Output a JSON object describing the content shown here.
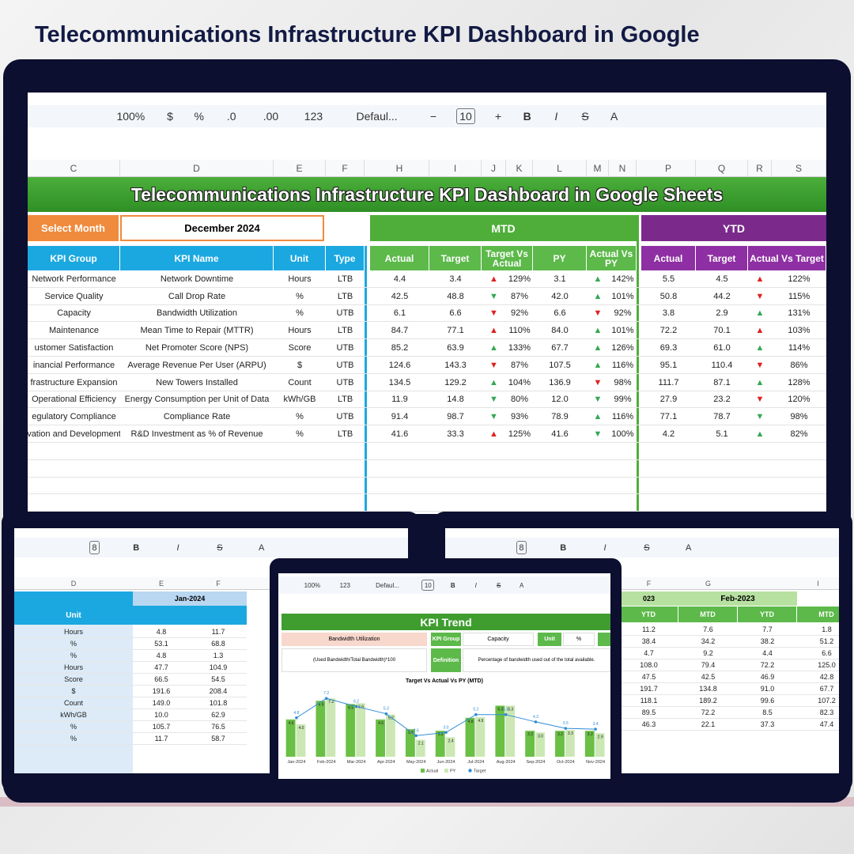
{
  "header": {
    "title": "Telecommunications Infrastructure KPI Dashboard in Google"
  },
  "main": {
    "toolbar": [
      "100%",
      "$",
      "%",
      ".0",
      ".00",
      "123",
      "Defaul...",
      "−",
      "10",
      "+",
      "B",
      "I",
      "S",
      "A"
    ],
    "columns": [
      "C",
      "D",
      "E",
      "F",
      "H",
      "I",
      "J",
      "K",
      "L",
      "M",
      "N",
      "P",
      "Q",
      "R",
      "S"
    ],
    "banner": "Telecommunications Infrastructure KPI Dashboard in Google Sheets",
    "select_label": "Select Month",
    "select_value": "December 2024",
    "mtd_label": "MTD",
    "ytd_label": "YTD",
    "headers": [
      "KPI Group",
      "KPI Name",
      "Unit",
      "Type",
      "Actual",
      "Target",
      "Target Vs Actual",
      "PY",
      "Actual Vs PY",
      "Actual",
      "Target",
      "Actual Vs Target"
    ],
    "rows": [
      {
        "group": "Network Performance",
        "name": "Network Downtime",
        "unit": "Hours",
        "type": "LTB",
        "mtd_actual": "4.4",
        "mtd_target": "3.4",
        "tva": {
          "icon": "▲",
          "color": "#e02020",
          "text": "129%"
        },
        "py": "3.1",
        "avp": {
          "icon": "▲",
          "color": "#34a853",
          "text": "142%"
        },
        "ytd_actual": "5.5",
        "ytd_target": "4.5",
        "avt": {
          "icon": "▲",
          "color": "#e02020",
          "text": "122%"
        }
      },
      {
        "group": "Service Quality",
        "name": "Call Drop Rate",
        "unit": "%",
        "type": "LTB",
        "mtd_actual": "42.5",
        "mtd_target": "48.8",
        "tva": {
          "icon": "▼",
          "color": "#34a853",
          "text": "87%"
        },
        "py": "42.0",
        "avp": {
          "icon": "▲",
          "color": "#34a853",
          "text": "101%"
        },
        "ytd_actual": "50.8",
        "ytd_target": "44.2",
        "avt": {
          "icon": "▼",
          "color": "#e02020",
          "text": "115%"
        }
      },
      {
        "group": "Capacity",
        "name": "Bandwidth Utilization",
        "unit": "%",
        "type": "UTB",
        "mtd_actual": "6.1",
        "mtd_target": "6.6",
        "tva": {
          "icon": "▼",
          "color": "#e02020",
          "text": "92%"
        },
        "py": "6.6",
        "avp": {
          "icon": "▼",
          "color": "#e02020",
          "text": "92%"
        },
        "ytd_actual": "3.8",
        "ytd_target": "2.9",
        "avt": {
          "icon": "▲",
          "color": "#34a853",
          "text": "131%"
        }
      },
      {
        "group": "Maintenance",
        "name": "Mean Time to Repair (MTTR)",
        "unit": "Hours",
        "type": "LTB",
        "mtd_actual": "84.7",
        "mtd_target": "77.1",
        "tva": {
          "icon": "▲",
          "color": "#e02020",
          "text": "110%"
        },
        "py": "84.0",
        "avp": {
          "icon": "▲",
          "color": "#34a853",
          "text": "101%"
        },
        "ytd_actual": "72.2",
        "ytd_target": "70.1",
        "avt": {
          "icon": "▲",
          "color": "#e02020",
          "text": "103%"
        }
      },
      {
        "group": "ustomer Satisfaction",
        "name": "Net Promoter Score (NPS)",
        "unit": "Score",
        "type": "UTB",
        "mtd_actual": "85.2",
        "mtd_target": "63.9",
        "tva": {
          "icon": "▲",
          "color": "#34a853",
          "text": "133%"
        },
        "py": "67.7",
        "avp": {
          "icon": "▲",
          "color": "#34a853",
          "text": "126%"
        },
        "ytd_actual": "69.3",
        "ytd_target": "61.0",
        "avt": {
          "icon": "▲",
          "color": "#34a853",
          "text": "114%"
        }
      },
      {
        "group": "inancial Performance",
        "name": "Average Revenue Per User (ARPU)",
        "unit": "$",
        "type": "UTB",
        "mtd_actual": "124.6",
        "mtd_target": "143.3",
        "tva": {
          "icon": "▼",
          "color": "#e02020",
          "text": "87%"
        },
        "py": "107.5",
        "avp": {
          "icon": "▲",
          "color": "#34a853",
          "text": "116%"
        },
        "ytd_actual": "95.1",
        "ytd_target": "110.4",
        "avt": {
          "icon": "▼",
          "color": "#e02020",
          "text": "86%"
        }
      },
      {
        "group": "frastructure Expansion",
        "name": "New Towers Installed",
        "unit": "Count",
        "type": "UTB",
        "mtd_actual": "134.5",
        "mtd_target": "129.2",
        "tva": {
          "icon": "▲",
          "color": "#34a853",
          "text": "104%"
        },
        "py": "136.9",
        "avp": {
          "icon": "▼",
          "color": "#e02020",
          "text": "98%"
        },
        "ytd_actual": "111.7",
        "ytd_target": "87.1",
        "avt": {
          "icon": "▲",
          "color": "#34a853",
          "text": "128%"
        }
      },
      {
        "group": "Operational Efficiency",
        "name": "Energy Consumption per Unit of Data",
        "unit": "kWh/GB",
        "type": "LTB",
        "mtd_actual": "11.9",
        "mtd_target": "14.8",
        "tva": {
          "icon": "▼",
          "color": "#34a853",
          "text": "80%"
        },
        "py": "12.0",
        "avp": {
          "icon": "▼",
          "color": "#34a853",
          "text": "99%"
        },
        "ytd_actual": "27.9",
        "ytd_target": "23.2",
        "avt": {
          "icon": "▼",
          "color": "#e02020",
          "text": "120%"
        }
      },
      {
        "group": "egulatory Compliance",
        "name": "Compliance Rate",
        "unit": "%",
        "type": "UTB",
        "mtd_actual": "91.4",
        "mtd_target": "98.7",
        "tva": {
          "icon": "▼",
          "color": "#34a853",
          "text": "93%"
        },
        "py": "78.9",
        "avp": {
          "icon": "▲",
          "color": "#34a853",
          "text": "116%"
        },
        "ytd_actual": "77.1",
        "ytd_target": "78.7",
        "avt": {
          "icon": "▼",
          "color": "#34a853",
          "text": "98%"
        }
      },
      {
        "group": "vation and Development",
        "name": "R&D Investment as % of Revenue",
        "unit": "%",
        "type": "LTB",
        "mtd_actual": "41.6",
        "mtd_target": "33.3",
        "tva": {
          "icon": "▲",
          "color": "#e02020",
          "text": "125%"
        },
        "py": "41.6",
        "avp": {
          "icon": "▼",
          "color": "#34a853",
          "text": "100%"
        },
        "ytd_actual": "4.2",
        "ytd_target": "5.1",
        "avt": {
          "icon": "▲",
          "color": "#34a853",
          "text": "82%"
        }
      }
    ]
  },
  "left": {
    "toolbar": [
      "8",
      "B",
      "I",
      "S",
      "A"
    ],
    "columns": [
      "D",
      "E",
      "F"
    ],
    "month": "Jan-2024",
    "unit_header": "Unit",
    "rows": [
      [
        "Hours",
        "4.8",
        "11.7"
      ],
      [
        "%",
        "53.1",
        "68.8"
      ],
      [
        "%",
        "4.8",
        "1.3"
      ],
      [
        "Hours",
        "47.7",
        "104.9"
      ],
      [
        "Score",
        "66.5",
        "54.5"
      ],
      [
        "$",
        "191.6",
        "208.4"
      ],
      [
        "Count",
        "149.0",
        "101.8"
      ],
      [
        "kWh/GB",
        "10.0",
        "62.9"
      ],
      [
        "%",
        "105.7",
        "76.5"
      ],
      [
        "%",
        "11.7",
        "58.7"
      ]
    ]
  },
  "right": {
    "toolbar": [
      "8",
      "B",
      "I",
      "S",
      "A"
    ],
    "columns": [
      "F",
      "G",
      "I"
    ],
    "year": "023",
    "month": "Feb-2023",
    "headers": [
      "YTD",
      "MTD",
      "YTD",
      "MTD"
    ],
    "rows": [
      [
        "11.2",
        "7.6",
        "7.7",
        "1.8"
      ],
      [
        "38.4",
        "34.2",
        "38.2",
        "51.2"
      ],
      [
        "4.7",
        "9.2",
        "4.4",
        "6.6"
      ],
      [
        "108.0",
        "79.4",
        "72.2",
        "125.0"
      ],
      [
        "47.5",
        "42.5",
        "46.9",
        "42.8"
      ],
      [
        "191.7",
        "134.8",
        "91.0",
        "67.7"
      ],
      [
        "118.1",
        "189.2",
        "99.6",
        "107.2"
      ],
      [
        "89.5",
        "72.2",
        "8.5",
        "82.3"
      ],
      [
        "46.3",
        "22.1",
        "37.3",
        "47.4"
      ]
    ]
  },
  "center": {
    "toolbar": [
      "100%",
      "123",
      "Defaul...",
      "10",
      "B",
      "I",
      "S",
      "A"
    ],
    "title": "KPI Trend",
    "kpi": "Bandwidth Utilization",
    "group_label": "KPI Group",
    "group": "Capacity",
    "unit_label": "Unit",
    "unit": "%",
    "formula": "(Used Bandwidth/Total Bandwidth)*100",
    "definition_label": "Definition",
    "definition": "Percentage of bandwidth used out of the total available.",
    "chart": {
      "type": "bar",
      "title": "Target Vs Actual Vs PY (MTD)",
      "ylim": [
        0,
        8
      ],
      "categories": [
        "Jan-2024",
        "Feb-2024",
        "Mar-2024",
        "Apr-2024",
        "May-2024",
        "Jun-2024",
        "Jul-2024",
        "Aug-2024",
        "Sep-2024",
        "Oct-2024",
        "Nov-2024"
      ],
      "series": [
        {
          "name": "Actual",
          "color": "#6abf45",
          "kind": "bar",
          "values": [
            4.6,
            6.9,
            6.5,
            4.6,
            3.4,
            3.2,
            4.8,
            6.3,
            3.2,
            3.2,
            3.2
          ],
          "value_labels": [
            "4.6",
            "6.9",
            "6.5",
            "4.6",
            "3.4",
            "3.2",
            "4.8",
            "6.3",
            "3.2",
            "3.2",
            "3.2"
          ]
        },
        {
          "name": "PY",
          "color": "#cbe8b4",
          "kind": "bar",
          "values": [
            4,
            7.2,
            6.6,
            5.2,
            2.1,
            2.4,
            4.9,
            6.3,
            3,
            3.3,
            2.9
          ],
          "value_labels": [
            "4.0",
            "7.2",
            "6.6",
            "5.2",
            "2.1",
            "2.4",
            "4.9",
            "6.3",
            "3.0",
            "3.3",
            "2.9"
          ]
        },
        {
          "name": "Target",
          "color": "#2e8bd6",
          "kind": "line",
          "values": [
            4.8,
            7.2,
            6.2,
            5.3,
            2.6,
            3,
            5.2,
            5.2,
            4.3,
            3.5,
            3.4
          ],
          "value_labels": [
            "4.8",
            "7.2",
            "6.2",
            "5.3",
            "2.6",
            "3.0",
            "5.2",
            "5.2",
            "4.3",
            "3.5",
            "3.4"
          ]
        }
      ]
    }
  }
}
